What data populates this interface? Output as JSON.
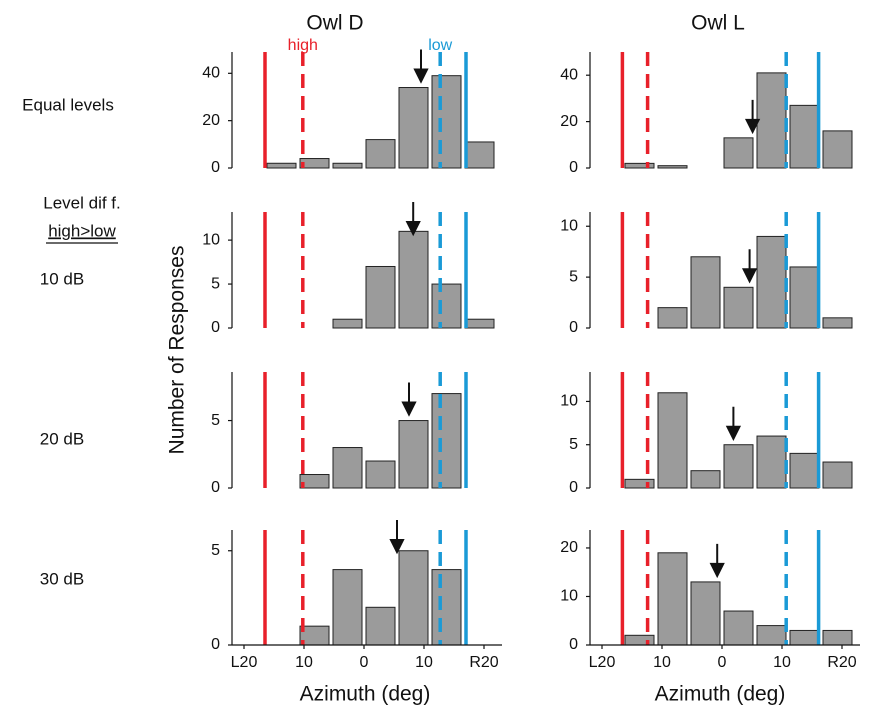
{
  "column_titles": [
    "Owl D",
    "Owl L"
  ],
  "row_labels": [
    "Equal levels",
    "10 dB",
    "20 dB",
    "30 dB"
  ],
  "level_label": [
    "Level dif f.",
    "high>low"
  ],
  "y_label": "Number of Responses",
  "x_label": "Azimuth (deg)",
  "chart_data": [
    {
      "type": "histogram",
      "bins": [
        -16.5,
        -11,
        -5.5,
        0,
        5.5,
        11,
        16.5,
        22
      ],
      "values": [
        2,
        4,
        2,
        12,
        34,
        39,
        11
      ],
      "color": "#9b9b9b",
      "xlim": [
        -22,
        23
      ],
      "ylim": [
        0,
        49
      ],
      "yticks": [
        0,
        20,
        40
      ],
      "arrow": 9.5,
      "vlines": [
        {
          "x": -16.5,
          "color": "#e8202a",
          "style": "solid"
        },
        {
          "x": -10.2,
          "color": "#e8202a",
          "style": "dashed",
          "label": "high"
        },
        {
          "x": 12.7,
          "color": "#1a9ad6",
          "style": "dashed",
          "label": "low"
        },
        {
          "x": 17,
          "color": "#1a9ad6",
          "style": "solid"
        }
      ]
    },
    {
      "type": "histogram",
      "bins": [
        -16.5,
        -11,
        -5.5,
        0,
        5.5,
        11,
        16.5,
        22
      ],
      "values": [
        2,
        1,
        0,
        13,
        41,
        27,
        16
      ],
      "color": "#9b9b9b",
      "xlim": [
        -22,
        23
      ],
      "ylim": [
        0,
        50
      ],
      "yticks": [
        0,
        20,
        40
      ],
      "arrow": 5.1,
      "vlines": [
        {
          "x": -16.6,
          "color": "#e8202a",
          "style": "solid"
        },
        {
          "x": -12.4,
          "color": "#e8202a",
          "style": "dashed"
        },
        {
          "x": 10.7,
          "color": "#1a9ad6",
          "style": "dashed"
        },
        {
          "x": 16.1,
          "color": "#1a9ad6",
          "style": "solid"
        }
      ]
    },
    {
      "type": "histogram",
      "bins": [
        -16.5,
        -11,
        -5.5,
        0,
        5.5,
        11,
        16.5,
        22
      ],
      "values": [
        0,
        0,
        1,
        7,
        11,
        5,
        1
      ],
      "color": "#9b9b9b",
      "xlim": [
        -22,
        23
      ],
      "ylim": [
        0,
        13.2
      ],
      "yticks": [
        0,
        5,
        10
      ],
      "arrow": 8.2,
      "vlines": [
        {
          "x": -16.5,
          "color": "#e8202a",
          "style": "solid"
        },
        {
          "x": -10.2,
          "color": "#e8202a",
          "style": "dashed"
        },
        {
          "x": 12.7,
          "color": "#1a9ad6",
          "style": "dashed"
        },
        {
          "x": 17,
          "color": "#1a9ad6",
          "style": "solid"
        }
      ]
    },
    {
      "type": "histogram",
      "bins": [
        -16.5,
        -11,
        -5.5,
        0,
        5.5,
        11,
        16.5,
        22
      ],
      "values": [
        0,
        2,
        7,
        4,
        9,
        6,
        1
      ],
      "color": "#9b9b9b",
      "xlim": [
        -22,
        23
      ],
      "ylim": [
        0,
        11.4
      ],
      "yticks": [
        0,
        5,
        10
      ],
      "arrow": 4.6,
      "vlines": [
        {
          "x": -16.6,
          "color": "#e8202a",
          "style": "solid"
        },
        {
          "x": -12.4,
          "color": "#e8202a",
          "style": "dashed"
        },
        {
          "x": 10.7,
          "color": "#1a9ad6",
          "style": "dashed"
        },
        {
          "x": 16.1,
          "color": "#1a9ad6",
          "style": "solid"
        }
      ]
    },
    {
      "type": "histogram",
      "bins": [
        -16.5,
        -11,
        -5.5,
        0,
        5.5,
        11,
        16.5,
        22
      ],
      "values": [
        0,
        1,
        3,
        2,
        5,
        7,
        0
      ],
      "color": "#9b9b9b",
      "xlim": [
        -22,
        23
      ],
      "ylim": [
        0,
        8.6
      ],
      "yticks": [
        0,
        5
      ],
      "arrow": 7.5,
      "vlines": [
        {
          "x": -16.5,
          "color": "#e8202a",
          "style": "solid"
        },
        {
          "x": -10.2,
          "color": "#e8202a",
          "style": "dashed"
        },
        {
          "x": 12.7,
          "color": "#1a9ad6",
          "style": "dashed"
        },
        {
          "x": 17,
          "color": "#1a9ad6",
          "style": "solid"
        }
      ]
    },
    {
      "type": "histogram",
      "bins": [
        -16.5,
        -11,
        -5.5,
        0,
        5.5,
        11,
        16.5,
        22
      ],
      "values": [
        1,
        11,
        2,
        5,
        6,
        4,
        3
      ],
      "color": "#9b9b9b",
      "xlim": [
        -22,
        23
      ],
      "ylim": [
        0,
        13.4
      ],
      "yticks": [
        0,
        5,
        10
      ],
      "arrow": 1.9,
      "vlines": [
        {
          "x": -16.6,
          "color": "#e8202a",
          "style": "solid"
        },
        {
          "x": -12.4,
          "color": "#e8202a",
          "style": "dashed"
        },
        {
          "x": 10.7,
          "color": "#1a9ad6",
          "style": "dashed"
        },
        {
          "x": 16.1,
          "color": "#1a9ad6",
          "style": "solid"
        }
      ]
    },
    {
      "type": "histogram",
      "bins": [
        -16.5,
        -11,
        -5.5,
        0,
        5.5,
        11,
        16.5,
        22
      ],
      "values": [
        0,
        1,
        4,
        2,
        5,
        4,
        0
      ],
      "color": "#9b9b9b",
      "xlim": [
        -22,
        23
      ],
      "ylim": [
        0,
        6.1
      ],
      "yticks": [
        0,
        5
      ],
      "arrow": 5.5,
      "xticks": [
        {
          "value": -20,
          "label": "L20"
        },
        {
          "value": -10,
          "label": "10"
        },
        0,
        10,
        {
          "value": 20,
          "label": "R20"
        }
      ],
      "vlines": [
        {
          "x": -16.5,
          "color": "#e8202a",
          "style": "solid"
        },
        {
          "x": -10.2,
          "color": "#e8202a",
          "style": "dashed"
        },
        {
          "x": 12.7,
          "color": "#1a9ad6",
          "style": "dashed"
        },
        {
          "x": 17,
          "color": "#1a9ad6",
          "style": "solid"
        }
      ]
    },
    {
      "type": "histogram",
      "bins": [
        -16.5,
        -11,
        -5.5,
        0,
        5.5,
        11,
        16.5,
        22
      ],
      "values": [
        2,
        19,
        13,
        7,
        4,
        3,
        3
      ],
      "color": "#9b9b9b",
      "xlim": [
        -22,
        23
      ],
      "ylim": [
        0,
        23.7
      ],
      "yticks": [
        0,
        10,
        20
      ],
      "arrow": -0.8,
      "xticks": [
        {
          "value": -20,
          "label": "L20"
        },
        {
          "value": -10,
          "label": "10"
        },
        0,
        10,
        {
          "value": 20,
          "label": "R20"
        }
      ],
      "vlines": [
        {
          "x": -16.6,
          "color": "#e8202a",
          "style": "solid"
        },
        {
          "x": -12.4,
          "color": "#e8202a",
          "style": "dashed"
        },
        {
          "x": 10.7,
          "color": "#1a9ad6",
          "style": "dashed"
        },
        {
          "x": 16.1,
          "color": "#1a9ad6",
          "style": "solid"
        }
      ]
    }
  ]
}
